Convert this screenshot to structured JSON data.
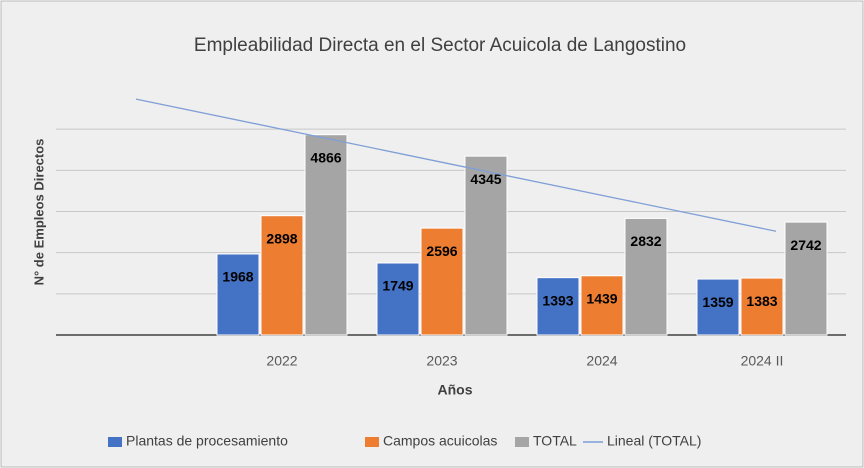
{
  "chart_data": {
    "type": "bar",
    "title": "Empleabilidad  Directa en el Sector Acuicola de Langostino",
    "x_label": "Años",
    "y_label": "N° de Empleos Directos",
    "categories": [
      null,
      "2022",
      "2023",
      "2024",
      "2024 II"
    ],
    "series": [
      {
        "name": "Plantas de procesamiento",
        "color": "#4472c4",
        "values": [
          null,
          1968,
          1749,
          1393,
          1359
        ]
      },
      {
        "name": "Campos acuicolas",
        "color": "#ed7d31",
        "values": [
          null,
          2898,
          2596,
          1439,
          1383
        ]
      },
      {
        "name": "TOTAL",
        "color": "#a5a5a5",
        "values": [
          null,
          4866,
          4345,
          2832,
          2742
        ]
      },
      {
        "name": "Lineal (TOTAL)",
        "color": "#7f9fd6",
        "type": "line",
        "values": [
          5730,
          4928,
          4125,
          3323,
          2520
        ]
      }
    ],
    "ylim": [
      0,
      6000
    ],
    "yticks": [
      0,
      1000,
      2000,
      3000,
      4000,
      5000
    ],
    "grid": true,
    "legend": "bottom"
  }
}
